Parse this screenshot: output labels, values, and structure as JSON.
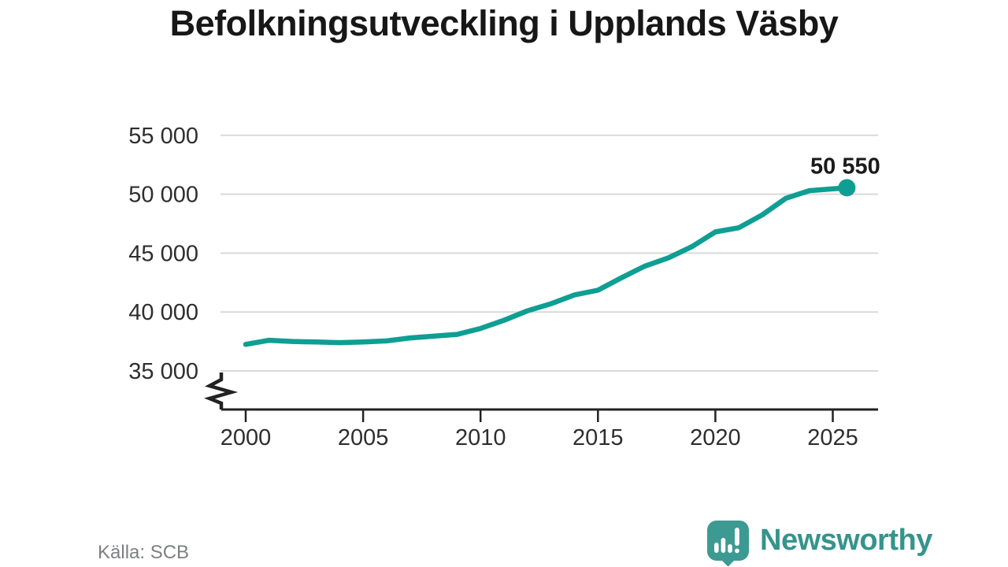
{
  "title": "Befolkningsutveckling i Upplands Väsby",
  "source": "Källa: SCB",
  "brand": {
    "name": "Newsworthy"
  },
  "end_label": "50 550",
  "colors": {
    "line": "#0f9e93",
    "dot": "#0f9e93",
    "grid": "#d9d9d9",
    "axis": "#222222",
    "tick_label": "#2e2e2e",
    "title": "#171717",
    "source_text": "#7d7f80",
    "brand_icon": "#3d9a92",
    "brand_text": "#35948c",
    "background": "#ffffff",
    "end_label_color": "#1a1a1a"
  },
  "chart_data": {
    "type": "line",
    "title": "Befolkningsutveckling i Upplands Väsby",
    "xlabel": "",
    "ylabel": "",
    "grid": "horizontal",
    "legend": "none",
    "axis_break_below_ymin": true,
    "xlim": [
      1998.9,
      2026.9
    ],
    "ylim": [
      35000,
      55000
    ],
    "x_ticks": [
      2000,
      2005,
      2010,
      2015,
      2020,
      2025
    ],
    "x_tick_labels": [
      "2000",
      "2005",
      "2010",
      "2015",
      "2020",
      "2025"
    ],
    "y_ticks": [
      35000,
      40000,
      45000,
      50000,
      55000
    ],
    "y_tick_labels": [
      "35 000",
      "40 000",
      "45 000",
      "50 000",
      "55 000"
    ],
    "series": [
      {
        "name": "Befolkning",
        "x": [
          2000,
          2001,
          2002,
          2003,
          2004,
          2005,
          2006,
          2007,
          2008,
          2009,
          2010,
          2011,
          2012,
          2013,
          2014,
          2015,
          2016,
          2017,
          2018,
          2019,
          2020,
          2021,
          2022,
          2023,
          2024,
          2025.6
        ],
        "values": [
          37250,
          37600,
          37500,
          37450,
          37400,
          37450,
          37550,
          37800,
          37950,
          38100,
          38600,
          39300,
          40100,
          40700,
          41450,
          41850,
          42900,
          43900,
          44600,
          45550,
          46800,
          47150,
          48250,
          49650,
          50300,
          50550
        ]
      }
    ],
    "end_point": {
      "x": 2025.6,
      "value": 50550,
      "label": "50 550"
    },
    "source": "SCB"
  }
}
